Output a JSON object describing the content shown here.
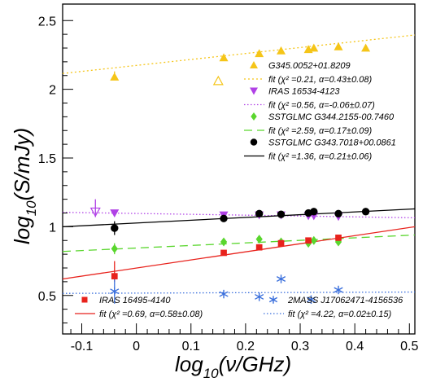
{
  "chart_data": {
    "type": "scatter",
    "xlabel": {
      "main": "log",
      "sub": "10",
      "tail": "(ν/GHz)"
    },
    "ylabel": {
      "main": "log",
      "sub": "10",
      "tail": "(S/mJy)"
    },
    "xlim": [
      -0.135,
      0.51
    ],
    "ylim": [
      0.22,
      2.62
    ],
    "x_ticks": [
      "-0.1",
      "0",
      "0.1",
      "0.2",
      "0.3",
      "0.4",
      "0.5"
    ],
    "x_tick_values": [
      -0.1,
      0,
      0.1,
      0.2,
      0.3,
      0.4,
      0.5
    ],
    "y_ticks": [
      "0.5",
      "1",
      "1.5",
      "2",
      "2.5"
    ],
    "y_tick_values": [
      0.5,
      1,
      1.5,
      2,
      2.5
    ],
    "series": [
      {
        "name": "G345.0052+01.8209",
        "fit_label": "fit (χ² =0.21, α=0.43±0.08)",
        "color": "#f5c518",
        "marker": "triangle-up",
        "line_style": "dashdot",
        "fit": [
          [
            -0.135,
            2.115
          ],
          [
            0.51,
            2.395
          ]
        ],
        "points": [
          [
            -0.04,
            2.09
          ],
          [
            0.16,
            2.23
          ],
          [
            0.225,
            2.26
          ],
          [
            0.265,
            2.28
          ],
          [
            0.315,
            2.29
          ],
          [
            0.325,
            2.3
          ],
          [
            0.37,
            2.31
          ],
          [
            0.42,
            2.3
          ]
        ],
        "open_points": [
          [
            0.15,
            2.06
          ]
        ],
        "error_bars": [
          [
            -0.04,
            2.07,
            2.13
          ]
        ]
      },
      {
        "name": "IRAS 16534-4123",
        "fit_label": "fit (χ² =0.56, α=-0.06±0.07)",
        "color": "#b041e6",
        "marker": "triangle-down",
        "line_style": "dotted",
        "fit": [
          [
            -0.135,
            1.105
          ],
          [
            0.51,
            1.065
          ]
        ],
        "points": [
          [
            -0.04,
            1.1
          ],
          [
            0.16,
            1.085
          ],
          [
            0.225,
            1.085
          ],
          [
            0.265,
            1.085
          ],
          [
            0.315,
            1.08
          ],
          [
            0.325,
            1.08
          ],
          [
            0.37,
            1.075
          ]
        ],
        "open_points": [
          [
            -0.075,
            1.11
          ]
        ],
        "error_bars": [
          [
            -0.075,
            1.07,
            1.2
          ]
        ]
      },
      {
        "name": "SSTGLMC G344.2155-00.7460",
        "fit_label": "fit (χ² =2.59, α=0.17±0.09)",
        "color": "#5ad62e",
        "marker": "diamond",
        "line_style": "dashed",
        "fit": [
          [
            -0.135,
            0.82
          ],
          [
            0.51,
            0.94
          ]
        ],
        "points": [
          [
            -0.04,
            0.84
          ],
          [
            0.16,
            0.89
          ],
          [
            0.225,
            0.91
          ],
          [
            0.265,
            0.89
          ],
          [
            0.315,
            0.88
          ],
          [
            0.325,
            0.9
          ],
          [
            0.37,
            0.89
          ]
        ],
        "open_points": [],
        "error_bars": [
          [
            -0.04,
            0.8,
            0.88
          ]
        ]
      },
      {
        "name": "SSTGLMC G343.7018+00.0861",
        "fit_label": "fit (χ² =1.36, α=0.21±0.06)",
        "color": "#000000",
        "marker": "circle",
        "line_style": "solid",
        "fit": [
          [
            -0.135,
            1.0
          ],
          [
            0.51,
            1.13
          ]
        ],
        "points": [
          [
            -0.04,
            0.99
          ],
          [
            0.16,
            1.06
          ],
          [
            0.225,
            1.095
          ],
          [
            0.265,
            1.09
          ],
          [
            0.315,
            1.1
          ],
          [
            0.325,
            1.11
          ],
          [
            0.37,
            1.095
          ],
          [
            0.42,
            1.11
          ]
        ],
        "open_points": [],
        "error_bars": [
          [
            -0.04,
            0.94,
            1.04
          ]
        ]
      },
      {
        "name": "IRAS 16495-4140",
        "fit_label": "fit (χ² =0.69, α=0.58±0.08)",
        "color": "#e8221c",
        "marker": "square",
        "line_style": "solid",
        "fit": [
          [
            -0.135,
            0.62
          ],
          [
            0.51,
            1.0
          ]
        ],
        "points": [
          [
            -0.04,
            0.64
          ],
          [
            0.16,
            0.81
          ],
          [
            0.225,
            0.85
          ],
          [
            0.265,
            0.88
          ],
          [
            0.315,
            0.9
          ],
          [
            0.37,
            0.92
          ]
        ],
        "open_points": [],
        "error_bars": [
          [
            -0.04,
            0.6,
            0.75
          ]
        ]
      },
      {
        "name": "2MASS J17062471-4156536",
        "fit_label": "fit (χ² =4.22, α=0.02±0.15)",
        "color": "#3a6fdc",
        "marker": "asterisk",
        "line_style": "dotted",
        "fit": [
          [
            -0.135,
            0.515
          ],
          [
            0.51,
            0.525
          ]
        ],
        "points": [
          [
            -0.04,
            0.53
          ],
          [
            0.16,
            0.51
          ],
          [
            0.225,
            0.49
          ],
          [
            0.265,
            0.62
          ],
          [
            0.32,
            0.47
          ],
          [
            0.37,
            0.54
          ]
        ],
        "open_points": [],
        "error_bars": [
          [
            -0.04,
            0.44,
            0.62
          ]
        ]
      }
    ],
    "legend": [
      {
        "series": 0,
        "position": "upper-right"
      },
      {
        "series": 1,
        "position": "upper-right"
      },
      {
        "series": 2,
        "position": "upper-right"
      },
      {
        "series": 3,
        "position": "upper-right"
      },
      {
        "series": 4,
        "position": "lower-left"
      },
      {
        "series": 5,
        "position": "lower-right"
      }
    ]
  }
}
